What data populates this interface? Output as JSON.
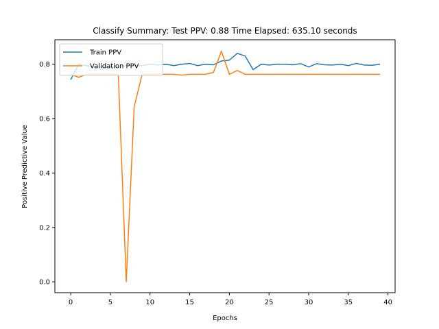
{
  "chart_data": {
    "type": "line",
    "title": "Classify Summary: Test PPV: 0.88 Time Elapsed: 635.10 seconds",
    "xlabel": "Epochs",
    "ylabel": "Positive Predictive Value",
    "xlim": [
      -2,
      40.9
    ],
    "ylim": [
      -0.04,
      0.89
    ],
    "xticks": [
      0,
      5,
      10,
      15,
      20,
      25,
      30,
      35,
      40
    ],
    "yticks": [
      0.0,
      0.2,
      0.4,
      0.6,
      0.8
    ],
    "ytick_labels": [
      "0.0",
      "0.2",
      "0.4",
      "0.6",
      "0.8"
    ],
    "legend_position": "top-left",
    "grid": false,
    "x": [
      0,
      1,
      2,
      3,
      4,
      5,
      6,
      7,
      8,
      9,
      10,
      11,
      12,
      13,
      14,
      15,
      16,
      17,
      18,
      19,
      20,
      21,
      22,
      23,
      24,
      25,
      26,
      27,
      28,
      29,
      30,
      31,
      32,
      33,
      34,
      35,
      36,
      37,
      38,
      39
    ],
    "series": [
      {
        "name": "Train PPV",
        "color": "#1f77b4",
        "values": [
          0.743,
          0.8,
          0.795,
          0.79,
          0.79,
          0.79,
          0.79,
          0.795,
          0.795,
          0.795,
          0.8,
          0.797,
          0.8,
          0.795,
          0.8,
          0.803,
          0.795,
          0.8,
          0.798,
          0.812,
          0.815,
          0.84,
          0.83,
          0.78,
          0.8,
          0.797,
          0.8,
          0.8,
          0.798,
          0.802,
          0.79,
          0.802,
          0.798,
          0.797,
          0.8,
          0.795,
          0.803,
          0.797,
          0.796,
          0.8
        ]
      },
      {
        "name": "Validation PPV",
        "color": "#ff7f0e",
        "values": [
          0.763,
          0.752,
          0.763,
          0.763,
          0.763,
          0.763,
          0.763,
          0.0,
          0.643,
          0.763,
          0.763,
          0.763,
          0.763,
          0.763,
          0.76,
          0.763,
          0.763,
          0.763,
          0.77,
          0.848,
          0.763,
          0.777,
          0.763,
          0.763,
          0.763,
          0.763,
          0.763,
          0.763,
          0.763,
          0.763,
          0.763,
          0.763,
          0.763,
          0.763,
          0.763,
          0.763,
          0.763,
          0.763,
          0.763,
          0.763
        ]
      }
    ]
  }
}
